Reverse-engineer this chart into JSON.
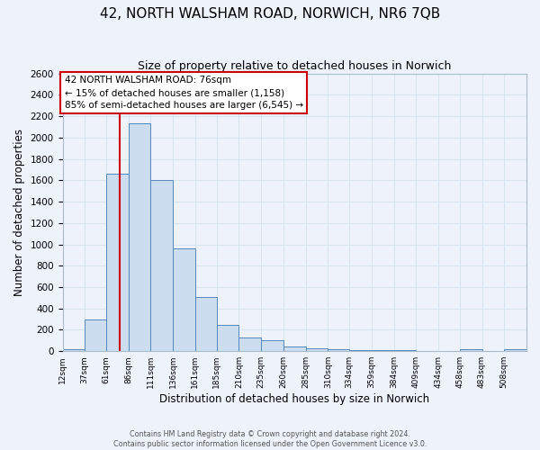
{
  "title": "42, NORTH WALSHAM ROAD, NORWICH, NR6 7QB",
  "subtitle": "Size of property relative to detached houses in Norwich",
  "xlabel": "Distribution of detached houses by size in Norwich",
  "ylabel": "Number of detached properties",
  "bin_labels": [
    "12sqm",
    "37sqm",
    "61sqm",
    "86sqm",
    "111sqm",
    "136sqm",
    "161sqm",
    "185sqm",
    "210sqm",
    "235sqm",
    "260sqm",
    "285sqm",
    "310sqm",
    "334sqm",
    "359sqm",
    "384sqm",
    "409sqm",
    "434sqm",
    "458sqm",
    "483sqm",
    "508sqm"
  ],
  "bar_heights": [
    20,
    295,
    1665,
    2130,
    1600,
    960,
    505,
    250,
    125,
    100,
    40,
    25,
    15,
    10,
    10,
    8,
    5,
    5,
    20,
    5,
    20
  ],
  "bar_color": "#ccddf0",
  "bar_edge_color": "#5588bb",
  "property_line_x": 76,
  "property_line_label": "42 NORTH WALSHAM ROAD: 76sqm",
  "annotation_smaller": "← 15% of detached houses are smaller (1,158)",
  "annotation_larger": "85% of semi-detached houses are larger (6,545) →",
  "annotation_box_color": "#ffffff",
  "annotation_box_edge": "#cc0000",
  "red_line_color": "#cc0000",
  "ylim": [
    0,
    2600
  ],
  "yticks": [
    0,
    200,
    400,
    600,
    800,
    1000,
    1200,
    1400,
    1600,
    1800,
    2000,
    2200,
    2400,
    2600
  ],
  "footer1": "Contains HM Land Registry data © Crown copyright and database right 2024.",
  "footer2": "Contains public sector information licensed under the Open Government Licence v3.0.",
  "bg_color": "#eef2fb",
  "grid_color": "#d8e4f0",
  "bin_edges": [
    12,
    37,
    61,
    86,
    111,
    136,
    161,
    185,
    210,
    235,
    260,
    285,
    310,
    334,
    359,
    384,
    409,
    434,
    458,
    483,
    508,
    533
  ]
}
